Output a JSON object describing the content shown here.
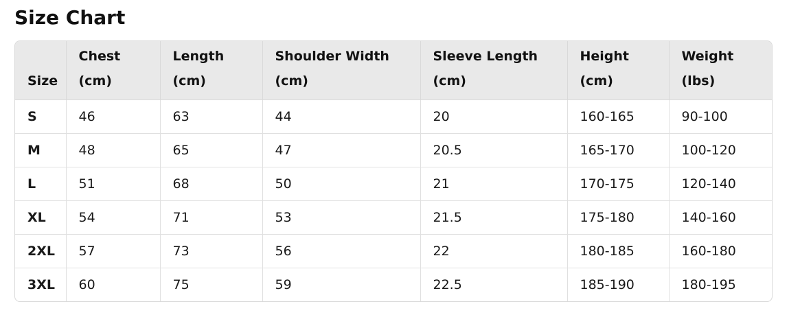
{
  "title": "Size Chart",
  "table": {
    "headers": [
      {
        "line1": "Size",
        "line2": ""
      },
      {
        "line1": "Chest",
        "line2": "(cm)"
      },
      {
        "line1": "Length",
        "line2": "(cm)"
      },
      {
        "line1": "Shoulder Width",
        "line2": "(cm)"
      },
      {
        "line1": "Sleeve Length",
        "line2": "(cm)"
      },
      {
        "line1": "Height",
        "line2": "(cm)"
      },
      {
        "line1": "Weight",
        "line2": "(lbs)"
      }
    ],
    "rows": [
      [
        "S",
        "46",
        "63",
        "44",
        "20",
        "160-165",
        "90-100"
      ],
      [
        "M",
        "48",
        "65",
        "47",
        "20.5",
        "165-170",
        "100-120"
      ],
      [
        "L",
        "51",
        "68",
        "50",
        "21",
        "170-175",
        "120-140"
      ],
      [
        "XL",
        "54",
        "71",
        "53",
        "21.5",
        "175-180",
        "140-160"
      ],
      [
        "2XL",
        "57",
        "73",
        "56",
        "22",
        "180-185",
        "160-180"
      ],
      [
        "3XL",
        "60",
        "75",
        "59",
        "22.5",
        "185-190",
        "180-195"
      ]
    ]
  }
}
